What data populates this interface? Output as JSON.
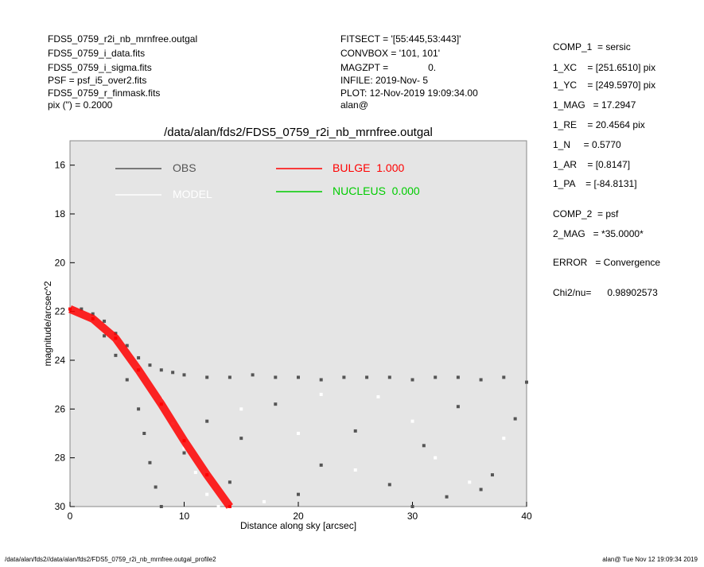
{
  "chart_data": {
    "type": "scatter",
    "title": "/data/alan/fds2/FDS5_0759_r2i_nb_mrnfree.outgal",
    "xlabel": "Distance along sky [arcsec]",
    "ylabel": "magnitude/arcsec^2",
    "xlim": [
      0,
      40
    ],
    "ylim": [
      15,
      30
    ],
    "y_inverted": true,
    "xticks": [
      0,
      10,
      20,
      30,
      40
    ],
    "yticks": [
      16,
      18,
      20,
      22,
      24,
      26,
      28,
      30
    ],
    "background": "#e5e5e5",
    "header_left": [
      "FDS5_0759_r2i_nb_mrnfree.outgal",
      "FDS5_0759_i_data.fits",
      "FDS5_0759_i_sigma.fits",
      "PSF    = psf_i5_over2.fits",
      "FDS5_0759_r_finmask.fits",
      "pix (\") =  0.2000"
    ],
    "header_mid": [
      "FITSECT = '[55:445,53:443]'",
      "CONVBOX = '101, 101'",
      "MAGZPT =               0.",
      "INFILE: 2019-Nov- 5",
      "PLOT: 12-Nov-2019 19:09:34.00",
      "alan@"
    ],
    "params": [
      "COMP_1  = sersic",
      "1_XC    = [251.6510] pix",
      "1_YC    = [249.5970] pix",
      "1_MAG   = 17.2947",
      "1_RE    = 20.4564 pix",
      "1_N     = 0.5770",
      "1_AR    = [0.8147]",
      "1_PA    = [-84.8131]",
      "COMP_2  = psf",
      "2_MAG   = *35.0000*",
      "ERROR   = Convergence",
      "Chi2/nu=      0.98902573"
    ],
    "footer_left": "/data/alan/fds2//data/alan/fds2/FDS5_0759_r2i_nb_mrnfree.outgal_profile2",
    "footer_right": "alan@  Tue Nov 12 19:09:34 2019",
    "series": [
      {
        "name": "OBS",
        "color": "#555555",
        "x": [
          0,
          1,
          2,
          3,
          4,
          5,
          6,
          7,
          8,
          9,
          10,
          12,
          14,
          16,
          18,
          20,
          22,
          24,
          26,
          28,
          30,
          32,
          34,
          36,
          38,
          40,
          3,
          4,
          5,
          6,
          6.5,
          7,
          7.5,
          8,
          12,
          15,
          18,
          22,
          25,
          28,
          31,
          34,
          37,
          39,
          20,
          10,
          14,
          30,
          33,
          36
        ],
        "y": [
          21.9,
          21.9,
          22.1,
          22.4,
          22.9,
          23.4,
          23.9,
          24.2,
          24.4,
          24.5,
          24.6,
          24.7,
          24.7,
          24.6,
          24.7,
          24.7,
          24.8,
          24.7,
          24.7,
          24.7,
          24.8,
          24.7,
          24.7,
          24.8,
          24.7,
          24.9,
          23.0,
          23.8,
          24.8,
          26.0,
          27.0,
          28.2,
          29.2,
          30.0,
          26.5,
          27.2,
          25.8,
          28.3,
          26.9,
          29.1,
          27.5,
          25.9,
          28.7,
          26.4,
          29.5,
          27.8,
          29.0,
          30.0,
          29.6,
          29.3
        ]
      },
      {
        "name": "MODEL",
        "color": "#ffffff",
        "x": [
          0,
          2,
          4,
          6,
          8,
          9,
          10,
          11,
          12,
          13,
          15,
          20,
          25,
          30,
          35,
          17,
          27,
          38,
          22,
          32
        ],
        "y": [
          21.9,
          22.3,
          23.2,
          24.3,
          25.6,
          26.6,
          27.6,
          28.6,
          29.5,
          30.0,
          26.0,
          27.0,
          28.5,
          26.5,
          29.0,
          29.8,
          25.5,
          27.2,
          25.4,
          28.0
        ]
      },
      {
        "name": "BULGE  1.000",
        "color": "#ff0000",
        "x": [
          0,
          2,
          4,
          6,
          8,
          10,
          12,
          14
        ],
        "y": [
          21.9,
          22.3,
          23.1,
          24.4,
          25.8,
          27.3,
          28.7,
          30.0
        ]
      },
      {
        "name": "NUCLEUS  0.000",
        "color": "#00cc00",
        "x": [],
        "y": []
      }
    ]
  }
}
